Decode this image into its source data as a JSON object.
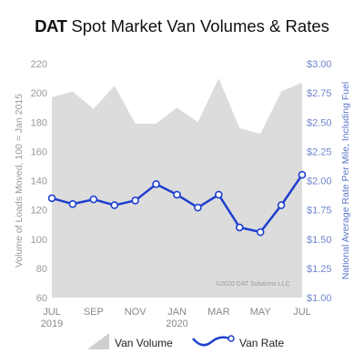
{
  "title": {
    "brand": "DAT",
    "text": "Spot Market Van Volumes & Rates"
  },
  "chart_data": {
    "type": "area+line",
    "x": [
      "JUL 2019",
      "AUG",
      "SEP",
      "OCT",
      "NOV",
      "DEC",
      "JAN 2020",
      "FEB",
      "MAR",
      "APR",
      "MAY",
      "JUN",
      "JUL"
    ],
    "x_tick_labels": [
      {
        "index": 0,
        "top": "JUL",
        "bottom": "2019"
      },
      {
        "index": 2,
        "top": "SEP",
        "bottom": ""
      },
      {
        "index": 4,
        "top": "NOV",
        "bottom": ""
      },
      {
        "index": 6,
        "top": "JAN",
        "bottom": "2020"
      },
      {
        "index": 8,
        "top": "MAR",
        "bottom": ""
      },
      {
        "index": 10,
        "top": "MAY",
        "bottom": ""
      },
      {
        "index": 12,
        "top": "JUL",
        "bottom": ""
      }
    ],
    "series": [
      {
        "name": "Van Volume",
        "type": "area",
        "axis": "left",
        "values": [
          197,
          201,
          189,
          205,
          179,
          179,
          190,
          180,
          210,
          176,
          172,
          201,
          207
        ]
      },
      {
        "name": "Van Rate",
        "type": "line",
        "axis": "right",
        "values": [
          1.85,
          1.8,
          1.84,
          1.79,
          1.83,
          1.97,
          1.88,
          1.77,
          1.88,
          1.6,
          1.56,
          1.79,
          2.05
        ]
      }
    ],
    "y_left": {
      "label": "Volume of Loads Moved, 100 = Jan 2015",
      "min": 60,
      "max": 220,
      "ticks": [
        "60",
        "80",
        "100",
        "120",
        "140",
        "160",
        "180",
        "200",
        "220"
      ]
    },
    "y_right": {
      "label": "National Average Rate Per Mile, Including Fuel",
      "min": 1.0,
      "max": 3.0,
      "ticks": [
        "$1.00",
        "$1.25",
        "$1.50",
        "$1.75",
        "$2.00",
        "$2.25",
        "$2.50",
        "$2.75",
        "$3.00"
      ]
    },
    "credit": "©2020 DAT Solutions LLC",
    "legend": [
      {
        "name": "Van Volume",
        "kind": "area"
      },
      {
        "name": "Van Rate",
        "kind": "line"
      }
    ],
    "legend_position": "bottom",
    "colors": {
      "area": "#dcdcdc",
      "line": "#1f3fcf",
      "right_axis": "#5b78c9"
    }
  }
}
